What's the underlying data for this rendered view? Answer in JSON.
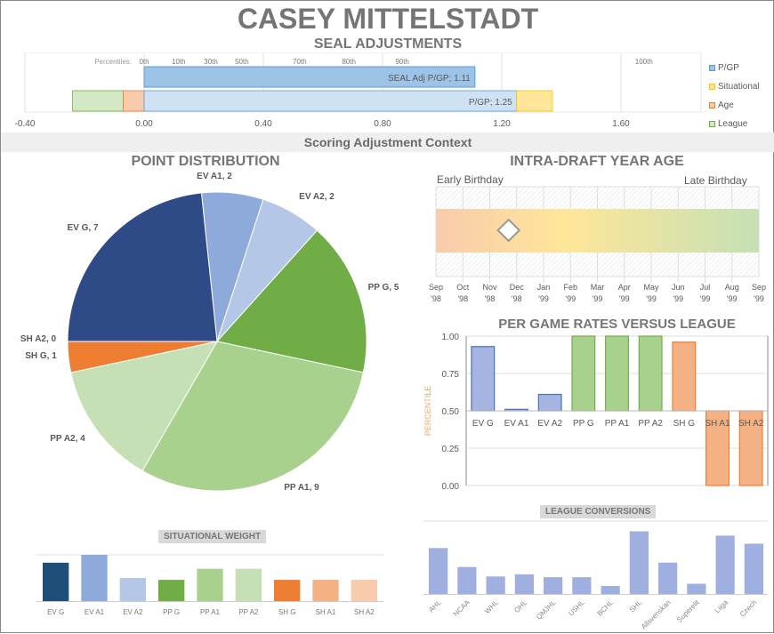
{
  "header": {
    "title": "CASEY MITTELSTADT",
    "subtitle": "SEAL ADJUSTMENTS"
  },
  "seal_chart": {
    "percentiles_label": "Percentiles:",
    "percentiles": [
      {
        "label": "0th",
        "value": 0
      },
      {
        "label": "10th",
        "value": 0.116
      },
      {
        "label": "30th",
        "value": 0.224
      },
      {
        "label": "50th",
        "value": 0.328
      },
      {
        "label": "70th",
        "value": 0.522
      },
      {
        "label": "80th",
        "value": 0.687
      },
      {
        "label": "90th",
        "value": 0.866
      },
      {
        "label": "100th",
        "value": 1.677
      }
    ],
    "xticks": [
      "-0.40",
      "0.00",
      "0.40",
      "0.80",
      "1.20",
      "1.60"
    ],
    "xlim": [
      -0.44,
      1.86
    ],
    "adj_bar": {
      "value": 1.11,
      "label": "SEAL Adj P/GP; 1.11"
    },
    "components": [
      {
        "name": "League",
        "from": -0.24,
        "to": -0.07
      },
      {
        "name": "Age",
        "from": -0.07,
        "to": 0
      },
      {
        "name": "P/GP",
        "from": 0,
        "to": 1.25,
        "label": "P/GP; 1.25"
      },
      {
        "name": "Situational",
        "from": 1.25,
        "to": 1.37
      }
    ],
    "legend": [
      {
        "name": "P/GP",
        "color": "#9dc3e6",
        "border": "#5b9bd5"
      },
      {
        "name": "Situational",
        "color": "#ffe699",
        "border": "#ffc000"
      },
      {
        "name": "Age",
        "color": "#f8cbad",
        "border": "#ed7d31"
      },
      {
        "name": "League",
        "color": "#d5e8c5",
        "border": "#70ad47"
      }
    ]
  },
  "section_title": "Scoring Adjustment Context",
  "chart_data": [
    {
      "type": "pie",
      "title": "POINT DISTRIBUTION",
      "slices": [
        {
          "label": "EV A1, 2",
          "value": 2,
          "color": "#8eaadb"
        },
        {
          "label": "EV A2, 2",
          "value": 2,
          "color": "#b4c7e7"
        },
        {
          "label": "PP G, 5",
          "value": 5,
          "color": "#70ad47"
        },
        {
          "label": "PP A1, 9",
          "value": 9,
          "color": "#a9d18e"
        },
        {
          "label": "PP A2, 4",
          "value": 4,
          "color": "#c5e0b4"
        },
        {
          "label": "SH G, 1",
          "value": 1,
          "color": "#ed7d31"
        },
        {
          "label": "SH A2, 0",
          "value": 0,
          "color": "#f4b183"
        },
        {
          "label": "EV G, 7",
          "value": 7,
          "color": "#2f4b87"
        }
      ]
    },
    {
      "type": "timeline",
      "title": "INTRA-DRAFT YEAR AGE",
      "left_label": "Early Birthday",
      "right_label": "Late Birthday",
      "months": [
        "Sep '98",
        "Oct '98",
        "Nov '98",
        "Dec '98",
        "Jan '99",
        "Feb '99",
        "Mar '99",
        "Apr '99",
        "May '99",
        "Jun '99",
        "Jul '99",
        "Aug '99",
        "Sep '99"
      ],
      "marker_position_months": 2.7
    },
    {
      "type": "bar",
      "title": "PER GAME RATES VERSUS LEAGUE",
      "ylabel": "PERCENTILE",
      "ylim": [
        0,
        1
      ],
      "baseline": 0.5,
      "yticks": [
        "0.00",
        "0.25",
        "0.50",
        "0.75",
        "1.00"
      ],
      "categories": [
        "EV G",
        "EV A1",
        "EV A2",
        "PP G",
        "PP A1",
        "PP A2",
        "SH G",
        "SH A1",
        "SH A2"
      ],
      "values": [
        0.93,
        0.51,
        0.61,
        1.0,
        1.0,
        1.0,
        0.96,
        0.0,
        0.0
      ],
      "colors": [
        "#a5b4e0",
        "#a5b4e0",
        "#a5b4e0",
        "#a9d18e",
        "#a9d18e",
        "#a9d18e",
        "#f4b183",
        "#f4b183",
        "#f4b183"
      ],
      "borders": [
        "#4472c4",
        "#4472c4",
        "#4472c4",
        "#70ad47",
        "#70ad47",
        "#70ad47",
        "#ed7d31",
        "#ed7d31",
        "#ed7d31"
      ]
    },
    {
      "type": "bar",
      "title": "SITUATIONAL  WEIGHT",
      "categories": [
        "EV G",
        "EV A1",
        "EV A2",
        "PP G",
        "PP A1",
        "PP A2",
        "SH G",
        "SH A1",
        "SH A2"
      ],
      "values": [
        0.83,
        1.0,
        0.5,
        0.46,
        0.7,
        0.7,
        0.46,
        0.46,
        0.46
      ],
      "colors": [
        "#1f4e79",
        "#8eaadb",
        "#b4c7e7",
        "#70ad47",
        "#a9d18e",
        "#c5e0b4",
        "#ed7d31",
        "#f4b183",
        "#f8cbad"
      ]
    },
    {
      "type": "bar",
      "title": "LEAGUE CONVERSIONS",
      "categories": [
        "AHL",
        "NCAA",
        "WHL",
        "OHL",
        "QMJHL",
        "USHL",
        "BCHL",
        "SHL",
        "Allsvenskan",
        "Superelit",
        "Liiga",
        "Czech"
      ],
      "values": [
        0.63,
        0.37,
        0.24,
        0.27,
        0.23,
        0.23,
        0.11,
        0.86,
        0.43,
        0.14,
        0.8,
        0.69
      ],
      "color": "#9fb0e0"
    }
  ]
}
